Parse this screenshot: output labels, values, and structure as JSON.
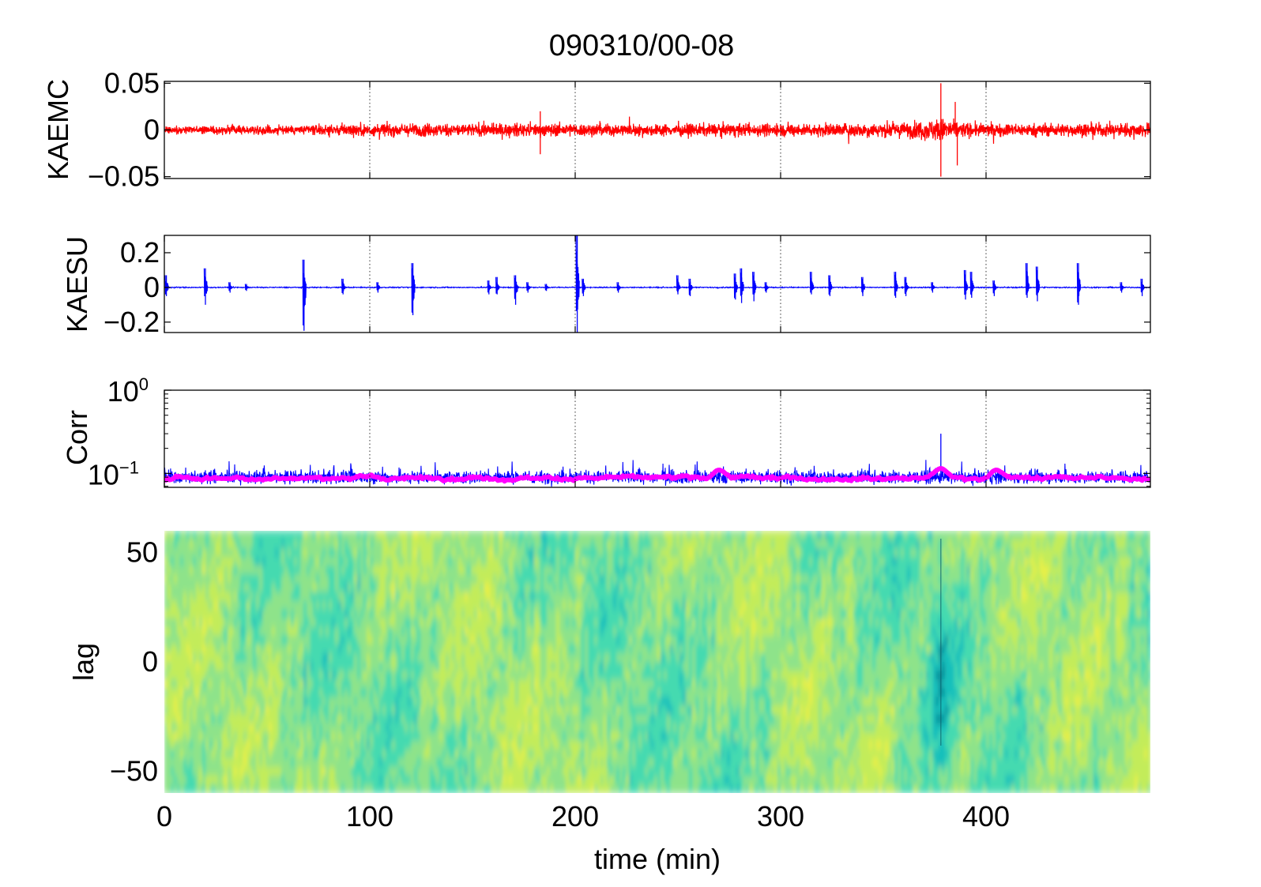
{
  "figure": {
    "title": "090310/00-08",
    "xlabel": "time (min)",
    "x_ticks": [
      "0",
      "100",
      "200",
      "300",
      "400"
    ]
  },
  "chart_data": [
    {
      "type": "line",
      "panel": "KAEMC",
      "ylabel": "KAEMC",
      "xlim": [
        0,
        480
      ],
      "ylim": [
        -0.052,
        0.052
      ],
      "yticks": [
        {
          "value": 0.05,
          "label": "0.05"
        },
        {
          "value": 0,
          "label": "0"
        },
        {
          "value": -0.05,
          "label": "−0.05"
        }
      ],
      "grid": "x-dotted",
      "series": [
        {
          "color": "#ff0000",
          "envelope_x": [
            0,
            40,
            80,
            90,
            120,
            160,
            200,
            240,
            280,
            320,
            360,
            370,
            378,
            390,
            400,
            440,
            480
          ],
          "envelope_amp": [
            0.007,
            0.008,
            0.01,
            0.012,
            0.012,
            0.012,
            0.012,
            0.011,
            0.012,
            0.012,
            0.014,
            0.018,
            0.022,
            0.014,
            0.012,
            0.012,
            0.013
          ],
          "spikes": [
            {
              "x": 378,
              "y": 0.05
            },
            {
              "x": 378,
              "y": -0.05
            },
            {
              "x": 385,
              "y": 0.03
            },
            {
              "x": 386,
              "y": -0.038
            },
            {
              "x": 183,
              "y": -0.026
            },
            {
              "x": 183,
              "y": 0.02
            }
          ]
        }
      ]
    },
    {
      "type": "line",
      "panel": "KAESU",
      "ylabel": "KAESU",
      "xlim": [
        0,
        480
      ],
      "ylim": [
        -0.26,
        0.3
      ],
      "yticks": [
        {
          "value": 0.2,
          "label": "0.2"
        },
        {
          "value": 0,
          "label": "0"
        },
        {
          "value": -0.2,
          "label": "−0.2"
        }
      ],
      "grid": "x-dotted",
      "series": [
        {
          "color": "#0000ff",
          "baseline_noise": 0.006,
          "bursts": [
            {
              "x": 1,
              "up": 0.07,
              "down": -0.05
            },
            {
              "x": 20,
              "up": 0.11,
              "down": -0.1
            },
            {
              "x": 32,
              "up": 0.03,
              "down": -0.03
            },
            {
              "x": 40,
              "up": 0.02,
              "down": -0.02
            },
            {
              "x": 68,
              "up": 0.16,
              "down": -0.25
            },
            {
              "x": 87,
              "up": 0.05,
              "down": -0.04
            },
            {
              "x": 104,
              "up": 0.03,
              "down": -0.03
            },
            {
              "x": 121,
              "up": 0.14,
              "down": -0.16
            },
            {
              "x": 158,
              "up": 0.04,
              "down": -0.04
            },
            {
              "x": 162,
              "up": 0.06,
              "down": -0.04
            },
            {
              "x": 171,
              "up": 0.07,
              "down": -0.1
            },
            {
              "x": 177,
              "up": 0.03,
              "down": -0.03
            },
            {
              "x": 186,
              "up": 0.02,
              "down": -0.02
            },
            {
              "x": 201,
              "up": 0.3,
              "down": -0.26
            },
            {
              "x": 204,
              "up": 0.05,
              "down": -0.05
            },
            {
              "x": 221,
              "up": 0.03,
              "down": -0.03
            },
            {
              "x": 250,
              "up": 0.07,
              "down": -0.04
            },
            {
              "x": 256,
              "up": 0.05,
              "down": -0.05
            },
            {
              "x": 278,
              "up": 0.08,
              "down": -0.07
            },
            {
              "x": 281,
              "up": 0.11,
              "down": -0.09
            },
            {
              "x": 287,
              "up": 0.09,
              "down": -0.08
            },
            {
              "x": 293,
              "up": 0.03,
              "down": -0.03
            },
            {
              "x": 315,
              "up": 0.09,
              "down": -0.04
            },
            {
              "x": 324,
              "up": 0.07,
              "down": -0.05
            },
            {
              "x": 340,
              "up": 0.06,
              "down": -0.05
            },
            {
              "x": 356,
              "up": 0.09,
              "down": -0.06
            },
            {
              "x": 361,
              "up": 0.06,
              "down": -0.05
            },
            {
              "x": 374,
              "up": 0.03,
              "down": -0.03
            },
            {
              "x": 390,
              "up": 0.1,
              "down": -0.07
            },
            {
              "x": 393,
              "up": 0.09,
              "down": -0.06
            },
            {
              "x": 404,
              "up": 0.04,
              "down": -0.05
            },
            {
              "x": 420,
              "up": 0.14,
              "down": -0.06
            },
            {
              "x": 425,
              "up": 0.12,
              "down": -0.08
            },
            {
              "x": 445,
              "up": 0.14,
              "down": -0.1
            },
            {
              "x": 466,
              "up": 0.03,
              "down": -0.03
            },
            {
              "x": 476,
              "up": 0.05,
              "down": -0.05
            }
          ]
        }
      ]
    },
    {
      "type": "line",
      "panel": "Corr",
      "ylabel": "Corr",
      "scale": "log",
      "xlim": [
        0,
        480
      ],
      "ylim": [
        0.068,
        1.0
      ],
      "yticks": [
        {
          "value": 1.0,
          "base": "10",
          "exp": "0"
        },
        {
          "value": 0.1,
          "base": "10",
          "exp": "−1"
        }
      ],
      "grid": "x-dotted",
      "series": [
        {
          "color": "#0000ff",
          "style": "thin-noisy",
          "center": 0.09,
          "range": [
            0.068,
            0.15
          ],
          "spikes": [
            {
              "x": 378,
              "y": 0.3
            }
          ]
        },
        {
          "color": "#ff00ff",
          "style": "thick-smooth",
          "center": 0.088,
          "range": [
            0.076,
            0.106
          ],
          "bumps": [
            {
              "x": 270,
              "y": 0.11
            },
            {
              "x": 378,
              "y": 0.115
            },
            {
              "x": 405,
              "y": 0.11
            }
          ]
        }
      ]
    },
    {
      "type": "heatmap",
      "panel": "lag",
      "ylabel": "lag",
      "xlim": [
        0,
        480
      ],
      "ylim": [
        -60,
        60
      ],
      "yticks": [
        {
          "value": 50,
          "label": "50"
        },
        {
          "value": 0,
          "label": "0"
        },
        {
          "value": -50,
          "label": "−50"
        }
      ],
      "colormap": [
        "#0f8f9a",
        "#19c0bb",
        "#44dab0",
        "#8ee38a",
        "#c3ec5a",
        "#e9f046"
      ],
      "features": [
        {
          "x": 378,
          "note": "dark vertical streak"
        }
      ]
    }
  ]
}
